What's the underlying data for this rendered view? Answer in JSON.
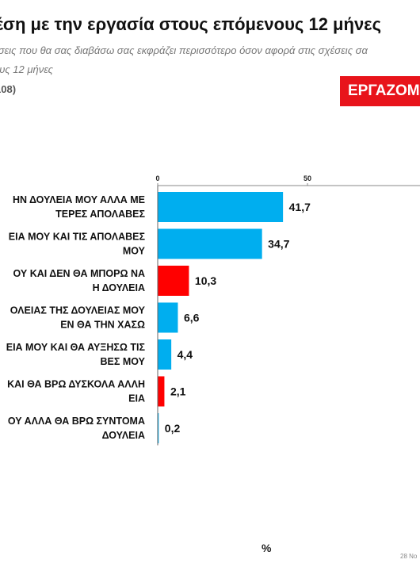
{
  "header": {
    "title": "έση με την εργασία στους επόμενους 12 μήνες",
    "subtitle_line1": "έσεις που θα σας διαβάσω σας εκφράζει περισσότερο όσον αφορά στις σχέσεις σα",
    "subtitle_line2": "ους 12 μήνες",
    "base": "108)",
    "badge": "ΕΡΓΑΖΟΜ",
    "badge_color": "#e8141b"
  },
  "footer": {
    "unit": "%",
    "date": "28 Νο"
  },
  "colors": {
    "blue": "#00aeef",
    "red": "#ff0000"
  },
  "chart_data": {
    "type": "bar",
    "orientation": "horizontal",
    "categories": [
      [
        "ΗΝ ΔΟΥΛΕΙΑ ΜΟΥ ΑΛΛΑ ΜΕ",
        "ΤΕΡΕΣ ΑΠΟΛΑΒΕΣ"
      ],
      [
        "ΕΙΑ ΜΟΥ ΚΑΙ ΤΙΣ ΑΠΟΛΑΒΕΣ",
        "ΜΟΥ"
      ],
      [
        "ΟΥ ΚΑΙ ΔΕΝ ΘΑ ΜΠΟΡΩ ΝΑ",
        "Η ΔΟΥΛΕΙΑ"
      ],
      [
        "ΟΛΕΙΑΣ ΤΗΣ ΔΟΥΛΕΙΑΣ ΜΟΥ",
        "ΕΝ ΘΑ ΤΗΝ ΧΑΣΩ"
      ],
      [
        "ΕΙΑ ΜΟΥ ΚΑΙ ΘΑ ΑΥΞΗΣΩ ΤΙΣ",
        "ΒΕΣ ΜΟΥ"
      ],
      [
        "ΚΑΙ ΘΑ ΒΡΩ ΔΥΣΚΟΛΑ ΑΛΛΗ",
        "ΕΙΑ"
      ],
      [
        "ΟΥ ΑΛΛΑ ΘΑ ΒΡΩ ΣΥΝΤΟΜΑ",
        "ΔΟΥΛΕΙΑ"
      ]
    ],
    "values": [
      41.7,
      34.7,
      10.3,
      6.6,
      4.4,
      2.1,
      0.2
    ],
    "value_labels": [
      "41,7",
      "34,7",
      "10,3",
      "6,6",
      "4,4",
      "2,1",
      "0,2"
    ],
    "bar_colors": [
      "blue",
      "blue",
      "red",
      "blue",
      "blue",
      "red",
      "blue"
    ],
    "xlim": [
      0,
      100
    ],
    "xticks": [
      0,
      50
    ],
    "xtick_labels": [
      "0",
      "50"
    ],
    "grid": false,
    "legend": "none"
  }
}
